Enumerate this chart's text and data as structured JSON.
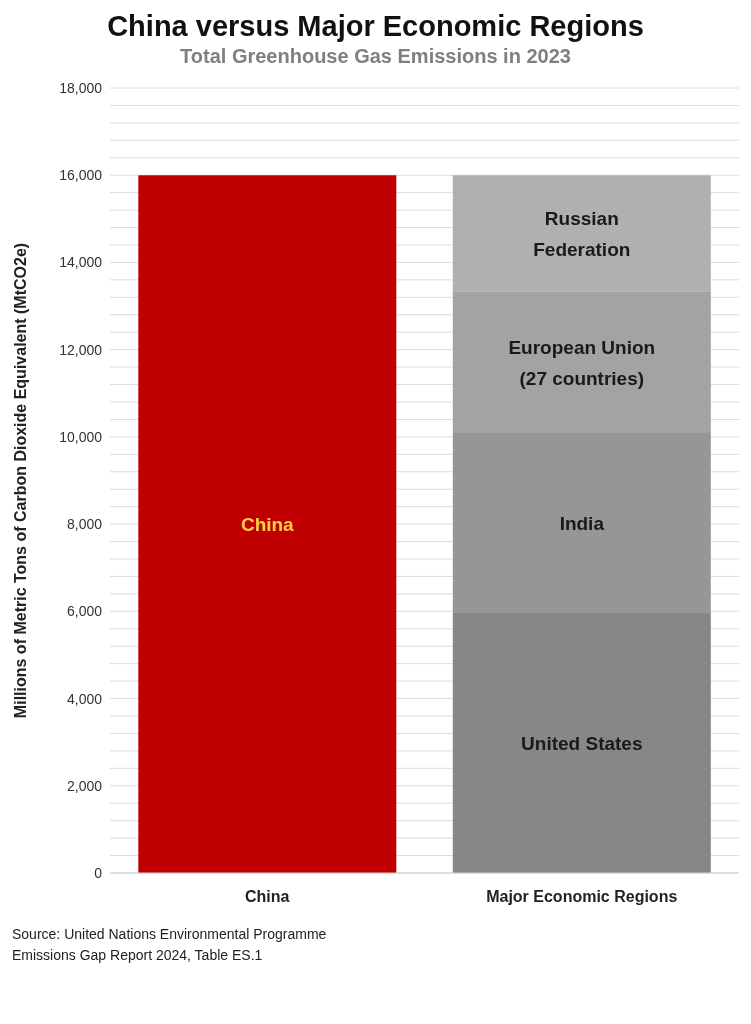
{
  "chart_data": {
    "type": "bar",
    "title": "China versus Major Economic Regions",
    "subtitle": "Total Greenhouse Gas Emissions in 2023",
    "ylabel": "Millions of Metric Tons of Carbon Dioxide Equivalent (MtCO2e)",
    "categories": [
      "China",
      "Major Economic Regions"
    ],
    "stacked": true,
    "legend": false,
    "grid": "y",
    "series": [
      {
        "name": "China",
        "color": "#c00000",
        "values": [
          16000,
          null
        ]
      },
      {
        "name": "United States",
        "color": "#878787",
        "values": [
          null,
          5960
        ]
      },
      {
        "name": "India",
        "color": "#969696",
        "values": [
          null,
          4130
        ]
      },
      {
        "name": "European Union (27 countries)",
        "color": "#a3a3a3",
        "values": [
          null,
          3250
        ]
      },
      {
        "name": "Russian Federation",
        "color": "#b0b0b0",
        "values": [
          null,
          2660
        ]
      }
    ],
    "ylim": [
      0,
      18000
    ],
    "yticks": [
      {
        "value": 0,
        "label": "0"
      },
      {
        "value": 400,
        "label": null
      },
      {
        "value": 800,
        "label": null
      },
      {
        "value": 1200,
        "label": null
      },
      {
        "value": 1600,
        "label": null
      },
      {
        "value": 2000,
        "label": "2,000"
      },
      {
        "value": 2400,
        "label": null
      },
      {
        "value": 2800,
        "label": null
      },
      {
        "value": 3200,
        "label": null
      },
      {
        "value": 3600,
        "label": null
      },
      {
        "value": 4000,
        "label": "4,000"
      },
      {
        "value": 4400,
        "label": null
      },
      {
        "value": 4800,
        "label": null
      },
      {
        "value": 5200,
        "label": null
      },
      {
        "value": 5600,
        "label": null
      },
      {
        "value": 6000,
        "label": "6,000"
      },
      {
        "value": 6400,
        "label": null
      },
      {
        "value": 6800,
        "label": null
      },
      {
        "value": 7200,
        "label": null
      },
      {
        "value": 7600,
        "label": null
      },
      {
        "value": 8000,
        "label": "8,000"
      },
      {
        "value": 8400,
        "label": null
      },
      {
        "value": 8800,
        "label": null
      },
      {
        "value": 9200,
        "label": null
      },
      {
        "value": 9600,
        "label": null
      },
      {
        "value": 10000,
        "label": "10,000"
      },
      {
        "value": 10400,
        "label": null
      },
      {
        "value": 10800,
        "label": null
      },
      {
        "value": 11200,
        "label": null
      },
      {
        "value": 11600,
        "label": null
      },
      {
        "value": 12000,
        "label": "12,000"
      },
      {
        "value": 12400,
        "label": null
      },
      {
        "value": 12800,
        "label": null
      },
      {
        "value": 13200,
        "label": null
      },
      {
        "value": 13600,
        "label": null
      },
      {
        "value": 14000,
        "label": "14,000"
      },
      {
        "value": 14400,
        "label": null
      },
      {
        "value": 14800,
        "label": null
      },
      {
        "value": 15200,
        "label": null
      },
      {
        "value": 15600,
        "label": null
      },
      {
        "value": 16000,
        "label": "16,000"
      },
      {
        "value": 16400,
        "label": null
      },
      {
        "value": 16800,
        "label": null
      },
      {
        "value": 17200,
        "label": null
      },
      {
        "value": 17600,
        "label": null
      },
      {
        "value": 18000,
        "label": "18,000"
      }
    ],
    "annotations": [
      "Source: United Nations Environmental Programme\nEmissions Gap Report 2024, Table ES.1"
    ]
  }
}
